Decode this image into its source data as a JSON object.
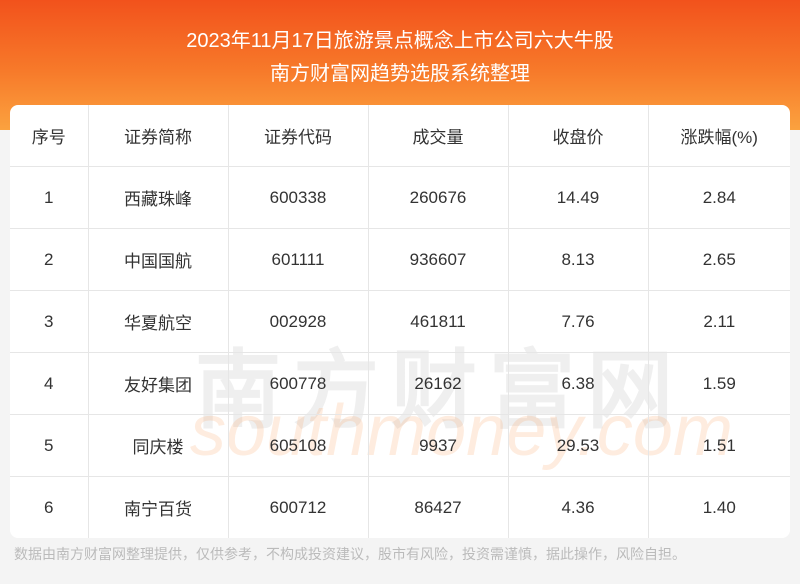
{
  "header": {
    "title": "2023年11月17日旅游景点概念上市公司六大牛股",
    "subtitle": "南方财富网趋势选股系统整理"
  },
  "table": {
    "columns": [
      "序号",
      "证券简称",
      "证券代码",
      "成交量",
      "收盘价",
      "涨跌幅(%)"
    ],
    "rows": [
      [
        "1",
        "西藏珠峰",
        "600338",
        "260676",
        "14.49",
        "2.84"
      ],
      [
        "2",
        "中国国航",
        "601111",
        "936607",
        "8.13",
        "2.65"
      ],
      [
        "3",
        "华夏航空",
        "002928",
        "461811",
        "7.76",
        "2.11"
      ],
      [
        "4",
        "友好集团",
        "600778",
        "26162",
        "6.38",
        "1.59"
      ],
      [
        "5",
        "同庆楼",
        "605108",
        "9937",
        "29.53",
        "1.51"
      ],
      [
        "6",
        "南宁百货",
        "600712",
        "86427",
        "4.36",
        "1.40"
      ]
    ]
  },
  "watermark": {
    "brand": "南方财富网",
    "site": "southmoney.com"
  },
  "footer": {
    "disclaimer": "数据由南方财富网整理提供，仅供参考，不构成投资建议，股市有风险，投资需谨慎，据此操作，风险自担。"
  }
}
